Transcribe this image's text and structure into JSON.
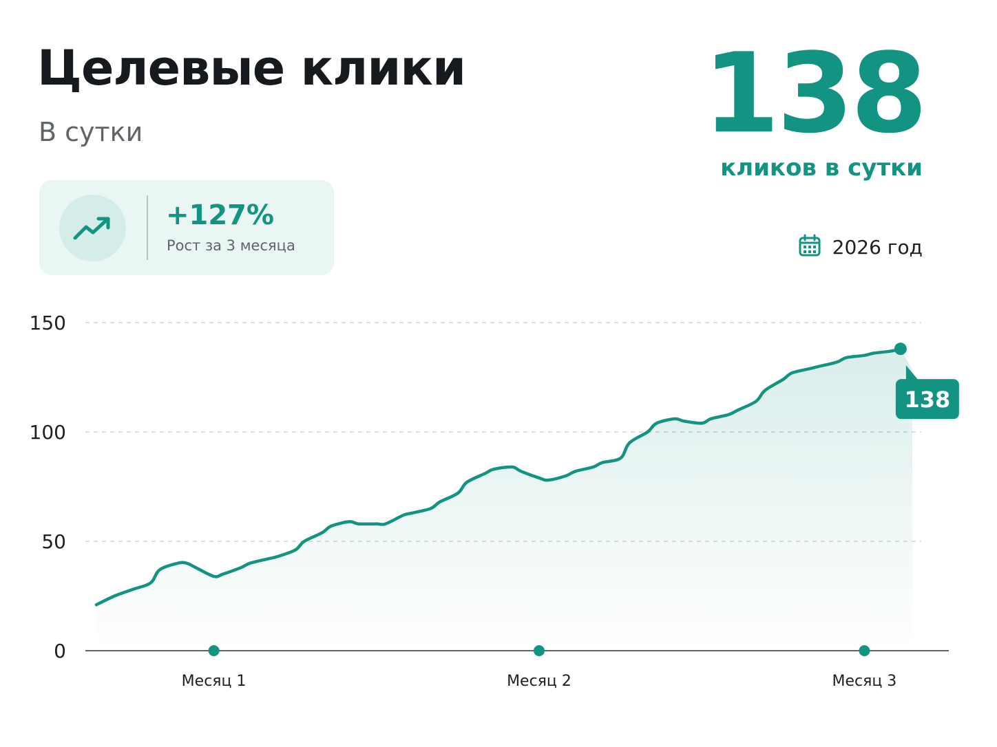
{
  "header": {
    "title": "Целевые клики",
    "subtitle": "В сутки"
  },
  "kpi": {
    "value": "138",
    "caption": "кликов в сутки"
  },
  "growth": {
    "icon": "trending-up-icon",
    "value": "+127%",
    "label": "Рост за 3 месяца"
  },
  "period": {
    "icon": "calendar-icon",
    "label": "2026 год"
  },
  "colors": {
    "accent": "#139381",
    "card_bg": "#eaf6f3"
  },
  "chart_data": {
    "type": "area",
    "title": "",
    "xlabel": "",
    "ylabel": "",
    "ylim": [
      0,
      150
    ],
    "yticks": [
      "0",
      "50",
      "100",
      "150"
    ],
    "xlim": [
      0,
      90
    ],
    "x_ticks": [
      {
        "x": 13,
        "label": "Месяц 1"
      },
      {
        "x": 49,
        "label": "Месяц 2"
      },
      {
        "x": 85,
        "label": "Месяц 3"
      }
    ],
    "grid": true,
    "series": [
      {
        "x": [
          0,
          2,
          4,
          6,
          7,
          9,
          10,
          11,
          13,
          14,
          16,
          17,
          19,
          20,
          22,
          23,
          25,
          26,
          28,
          29,
          31,
          32,
          34,
          35,
          37,
          38,
          40,
          41,
          43,
          44,
          46,
          47,
          49,
          50,
          52,
          53,
          55,
          56,
          58,
          59,
          61,
          62,
          64,
          65,
          67,
          68,
          70,
          71,
          73,
          74,
          76,
          77,
          79,
          80,
          82,
          83,
          85,
          86,
          88,
          89
        ],
        "values": [
          21,
          25,
          28,
          31,
          37,
          40,
          40,
          38,
          34,
          35,
          38,
          40,
          42,
          43,
          46,
          50,
          54,
          57,
          59,
          58,
          58,
          58,
          62,
          63,
          65,
          68,
          72,
          77,
          81,
          83,
          84,
          82,
          79,
          78,
          80,
          82,
          84,
          86,
          88,
          95,
          100,
          104,
          106,
          105,
          104,
          106,
          108,
          110,
          114,
          119,
          124,
          127,
          129,
          130,
          132,
          134,
          135,
          136,
          137,
          138
        ]
      }
    ],
    "end_label": "138"
  }
}
